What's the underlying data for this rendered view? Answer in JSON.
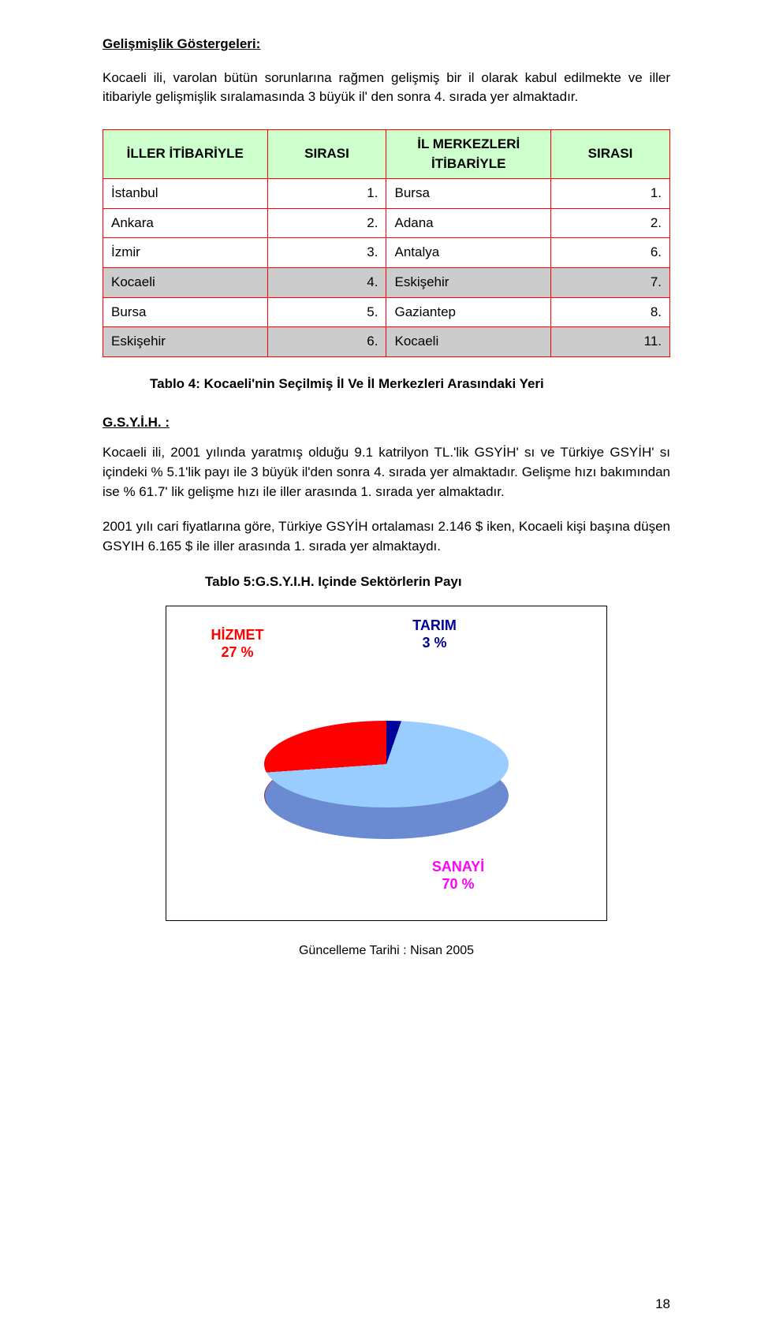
{
  "heading": "Gelişmişlik Göstergeleri:",
  "intro_para": "Kocaeli ili, varolan bütün sorunlarına rağmen gelişmiş bir il olarak kabul edilmekte ve iller itibariyle gelişmişlik sıralamasında 3 büyük il' den sonra 4. sırada yer almaktadır.",
  "table4": {
    "headers": {
      "col1": "İLLER İTİBARİYLE",
      "col2": "SIRASI",
      "col3": "İL MERKEZLERİ İTİBARİYLE",
      "col4": "SIRASI"
    },
    "rows": [
      {
        "c1": "İstanbul",
        "c2": "1.",
        "c3": "Bursa",
        "c4": "1.",
        "hl": false
      },
      {
        "c1": "Ankara",
        "c2": "2.",
        "c3": "Adana",
        "c4": "2.",
        "hl": false
      },
      {
        "c1": "İzmir",
        "c2": "3.",
        "c3": "Antalya",
        "c4": "6.",
        "hl": false
      },
      {
        "c1": "Kocaeli",
        "c2": "4.",
        "c3": "Eskişehir",
        "c4": "7.",
        "hl": true
      },
      {
        "c1": "Bursa",
        "c2": "5.",
        "c3": "Gaziantep",
        "c4": "8.",
        "hl": false
      },
      {
        "c1": "Eskişehir",
        "c2": "6.",
        "c3": "Kocaeli",
        "c4": "11.",
        "hl": true
      }
    ],
    "caption": "Tablo 4: Kocaeli'nin Seçilmiş İl Ve İl Merkezleri Arasındaki Yeri"
  },
  "gsyih_heading": "G.S.Y.İ.H. :",
  "gsyih_para1": "Kocaeli ili, 2001 yılında yaratmış olduğu 9.1 katrilyon TL.'lik GSYİH' sı ve Türkiye GSYİH' sı içindeki % 5.1'lik payı ile 3 büyük il'den sonra 4. sırada yer almaktadır. Gelişme hızı bakımından ise % 61.7' lik gelişme hızı ile iller arasında 1. sırada yer almaktadır.",
  "gsyih_para2": "2001 yılı cari fiyatlarına göre, Türkiye GSYİH ortalaması 2.146 $ iken, Kocaeli kişi başına düşen GSYIH 6.165 $ ile iller arasında 1. sırada yer almaktaydı.",
  "table5_caption": "Tablo 5:G.S.Y.I.H. Içinde Sektörlerin Payı",
  "pie_chart": {
    "type": "pie-3d",
    "border_color": "#000000",
    "background_color": "#ffffff",
    "slices": [
      {
        "label": "HİZMET",
        "pct_text": "27 %",
        "value": 27,
        "top_color": "#ff0000",
        "side_color": "#b80000",
        "label_color": "#ff0000"
      },
      {
        "label": "TARIM",
        "pct_text": "3 %",
        "value": 3,
        "top_color": "#000099",
        "side_color": "#000066",
        "label_color": "#000099"
      },
      {
        "label": "SANAYİ",
        "pct_text": "70 %",
        "value": 70,
        "top_color": "#99ccff",
        "side_color": "#6a8bd1",
        "label_color": "#ff00ff"
      }
    ],
    "label_font_size": 18,
    "label_font_weight": "bold"
  },
  "footer": "Güncelleme Tarihi : Nisan 2005",
  "page_number": "18"
}
